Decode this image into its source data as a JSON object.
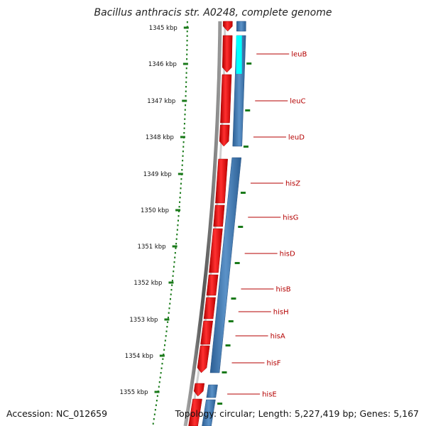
{
  "title": "Bacillus anthracis str. A0248, complete genome",
  "accession": "Accession: NC_012659",
  "summary": "Topology: circular; Length: 5,227,419 bp; Genes: 5,167",
  "ruler": [
    "1345 kbp",
    "1346 kbp",
    "1347 kbp",
    "1348 kbp",
    "1349 kbp",
    "1350 kbp",
    "1351 kbp",
    "1352 kbp",
    "1353 kbp",
    "1354 kbp",
    "1355 kbp"
  ],
  "genes": [
    "leuB",
    "leuC",
    "leuD",
    "hisZ",
    "hisG",
    "hisD",
    "hisB",
    "hisH",
    "hisA",
    "hisF",
    "hisE"
  ],
  "colors": {
    "gene": "#ff0000",
    "cds": "#3c78b4",
    "highlight": "#00ffff",
    "ruler": "#1a7a1a",
    "label": "#b40000",
    "backbone": "#777777"
  }
}
